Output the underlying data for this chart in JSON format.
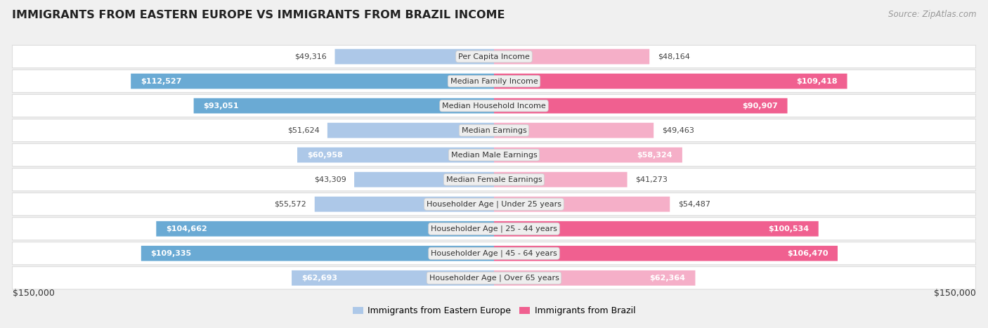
{
  "title": "IMMIGRANTS FROM EASTERN EUROPE VS IMMIGRANTS FROM BRAZIL INCOME",
  "source": "Source: ZipAtlas.com",
  "categories": [
    "Per Capita Income",
    "Median Family Income",
    "Median Household Income",
    "Median Earnings",
    "Median Male Earnings",
    "Median Female Earnings",
    "Householder Age | Under 25 years",
    "Householder Age | 25 - 44 years",
    "Householder Age | 45 - 64 years",
    "Householder Age | Over 65 years"
  ],
  "eastern_europe": [
    49316,
    112527,
    93051,
    51624,
    60958,
    43309,
    55572,
    104662,
    109335,
    62693
  ],
  "brazil": [
    48164,
    109418,
    90907,
    49463,
    58324,
    41273,
    54487,
    100534,
    106470,
    62364
  ],
  "eastern_europe_labels": [
    "$49,316",
    "$112,527",
    "$93,051",
    "$51,624",
    "$60,958",
    "$43,309",
    "$55,572",
    "$104,662",
    "$109,335",
    "$62,693"
  ],
  "brazil_labels": [
    "$48,164",
    "$109,418",
    "$90,907",
    "$49,463",
    "$58,324",
    "$41,273",
    "$54,487",
    "$100,534",
    "$106,470",
    "$62,364"
  ],
  "color_eastern_light": "#adc8e8",
  "color_eastern_dark": "#6aaad4",
  "color_brazil_light": "#f5afc8",
  "color_brazil_dark": "#f06090",
  "threshold": 70000,
  "x_max": 150000,
  "x_label_left": "$150,000",
  "x_label_right": "$150,000",
  "legend_eastern": "Immigrants from Eastern Europe",
  "legend_brazil": "Immigrants from Brazil",
  "bg_color": "#f0f0f0",
  "row_bg_color": "#ffffff",
  "label_bg_color": "#eeeeee"
}
